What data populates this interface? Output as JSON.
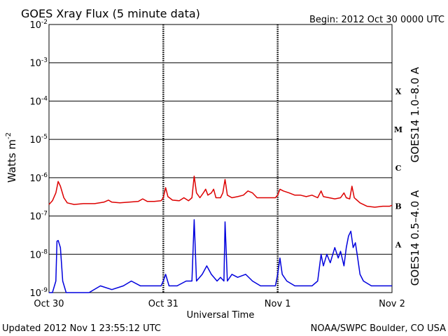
{
  "header": {
    "title": "GOES Xray Flux (5 minute data)",
    "begin": "Begin:  2012 Oct 30 0000 UTC"
  },
  "footer": {
    "updated": "Updated 2012 Nov  1 23:55:12 UTC",
    "source": "NOAA/SWPC Boulder, CO USA"
  },
  "chart_data": {
    "type": "line",
    "title": "GOES Xray Flux (5 minute data)",
    "xlabel": "Universal Time",
    "ylabel_main": "Watts m",
    "ylabel_sup": "-2",
    "yscale": "log",
    "ylim": [
      1e-09,
      0.01
    ],
    "ytick_base": "10",
    "yticks": [
      {
        "value": 0.01,
        "exp": "-2"
      },
      {
        "value": 0.001,
        "exp": "-3"
      },
      {
        "value": 0.0001,
        "exp": "-4"
      },
      {
        "value": 1e-05,
        "exp": "-5"
      },
      {
        "value": 1e-06,
        "exp": "-6"
      },
      {
        "value": 1e-07,
        "exp": "-7"
      },
      {
        "value": 1e-08,
        "exp": "-8"
      },
      {
        "value": 1e-09,
        "exp": "-9"
      }
    ],
    "xrange_days": [
      0,
      3
    ],
    "xticks": [
      {
        "day": 0,
        "label": "Oct 30"
      },
      {
        "day": 1,
        "label": "Oct 31"
      },
      {
        "day": 2,
        "label": "Nov 1"
      },
      {
        "day": 3,
        "label": "Nov 2"
      }
    ],
    "grid": true,
    "flare_classes": [
      {
        "label": "X",
        "value": 0.00018
      },
      {
        "label": "M",
        "value": 1.8e-05
      },
      {
        "label": "C",
        "value": 1.8e-06
      },
      {
        "label": "B",
        "value": 1.8e-07
      },
      {
        "label": "A",
        "value": 1.8e-08
      }
    ],
    "series": [
      {
        "name": "GOES14 1.0–8.0 A",
        "color": "#dd0000",
        "points": [
          [
            0.0,
            2e-07
          ],
          [
            0.03,
            2.5e-07
          ],
          [
            0.06,
            4e-07
          ],
          [
            0.08,
            8e-07
          ],
          [
            0.1,
            6e-07
          ],
          [
            0.13,
            3e-07
          ],
          [
            0.16,
            2.2e-07
          ],
          [
            0.22,
            2e-07
          ],
          [
            0.3,
            2.1e-07
          ],
          [
            0.4,
            2.1e-07
          ],
          [
            0.48,
            2.3e-07
          ],
          [
            0.52,
            2.6e-07
          ],
          [
            0.55,
            2.3e-07
          ],
          [
            0.62,
            2.2e-07
          ],
          [
            0.7,
            2.3e-07
          ],
          [
            0.78,
            2.4e-07
          ],
          [
            0.82,
            2.8e-07
          ],
          [
            0.86,
            2.4e-07
          ],
          [
            0.92,
            2.4e-07
          ],
          [
            0.98,
            2.5e-07
          ],
          [
            1.0,
            3e-07
          ],
          [
            1.02,
            5.5e-07
          ],
          [
            1.04,
            3.2e-07
          ],
          [
            1.08,
            2.6e-07
          ],
          [
            1.14,
            2.5e-07
          ],
          [
            1.18,
            3e-07
          ],
          [
            1.22,
            2.5e-07
          ],
          [
            1.25,
            3e-07
          ],
          [
            1.27,
            1.1e-06
          ],
          [
            1.29,
            4e-07
          ],
          [
            1.32,
            3e-07
          ],
          [
            1.35,
            4e-07
          ],
          [
            1.37,
            5e-07
          ],
          [
            1.39,
            3.5e-07
          ],
          [
            1.42,
            4e-07
          ],
          [
            1.44,
            5e-07
          ],
          [
            1.46,
            3e-07
          ],
          [
            1.5,
            3e-07
          ],
          [
            1.52,
            4e-07
          ],
          [
            1.54,
            9e-07
          ],
          [
            1.56,
            3.5e-07
          ],
          [
            1.6,
            3e-07
          ],
          [
            1.65,
            3.2e-07
          ],
          [
            1.7,
            3.5e-07
          ],
          [
            1.74,
            4.5e-07
          ],
          [
            1.78,
            4e-07
          ],
          [
            1.82,
            3e-07
          ],
          [
            1.88,
            3e-07
          ],
          [
            1.94,
            3e-07
          ],
          [
            1.98,
            3e-07
          ],
          [
            2.0,
            3.5e-07
          ],
          [
            2.02,
            5e-07
          ],
          [
            2.05,
            4.5e-07
          ],
          [
            2.1,
            4e-07
          ],
          [
            2.15,
            3.5e-07
          ],
          [
            2.2,
            3.5e-07
          ],
          [
            2.25,
            3.2e-07
          ],
          [
            2.3,
            3.5e-07
          ],
          [
            2.35,
            3e-07
          ],
          [
            2.38,
            4.5e-07
          ],
          [
            2.4,
            3.2e-07
          ],
          [
            2.45,
            3e-07
          ],
          [
            2.5,
            2.8e-07
          ],
          [
            2.55,
            3e-07
          ],
          [
            2.58,
            4e-07
          ],
          [
            2.6,
            3e-07
          ],
          [
            2.63,
            2.8e-07
          ],
          [
            2.65,
            6e-07
          ],
          [
            2.67,
            3e-07
          ],
          [
            2.72,
            2.2e-07
          ],
          [
            2.78,
            1.8e-07
          ],
          [
            2.85,
            1.7e-07
          ],
          [
            2.92,
            1.8e-07
          ],
          [
            2.98,
            1.8e-07
          ],
          [
            3.0,
            1.9e-07
          ]
        ]
      },
      {
        "name": "GOES14 0.5–4.0 A",
        "color": "#0000dd",
        "points": [
          [
            0.0,
            1e-09
          ],
          [
            0.03,
            1e-09
          ],
          [
            0.06,
            2e-09
          ],
          [
            0.07,
            2.2e-08
          ],
          [
            0.08,
            2.3e-08
          ],
          [
            0.1,
            1.5e-08
          ],
          [
            0.12,
            2e-09
          ],
          [
            0.15,
            1e-09
          ],
          [
            0.25,
            1e-09
          ],
          [
            0.35,
            1e-09
          ],
          [
            0.45,
            1.5e-09
          ],
          [
            0.55,
            1.2e-09
          ],
          [
            0.65,
            1.5e-09
          ],
          [
            0.72,
            2e-09
          ],
          [
            0.8,
            1.5e-09
          ],
          [
            0.9,
            1.5e-09
          ],
          [
            0.98,
            1.5e-09
          ],
          [
            1.0,
            2e-09
          ],
          [
            1.02,
            3e-09
          ],
          [
            1.05,
            1.5e-09
          ],
          [
            1.12,
            1.5e-09
          ],
          [
            1.2,
            2e-09
          ],
          [
            1.25,
            2e-09
          ],
          [
            1.27,
            8e-08
          ],
          [
            1.29,
            2e-09
          ],
          [
            1.34,
            3e-09
          ],
          [
            1.38,
            5e-09
          ],
          [
            1.42,
            3e-09
          ],
          [
            1.47,
            2e-09
          ],
          [
            1.5,
            2.5e-09
          ],
          [
            1.53,
            2e-09
          ],
          [
            1.54,
            7e-08
          ],
          [
            1.56,
            2e-09
          ],
          [
            1.6,
            3e-09
          ],
          [
            1.65,
            2.5e-09
          ],
          [
            1.72,
            3e-09
          ],
          [
            1.78,
            2e-09
          ],
          [
            1.85,
            1.5e-09
          ],
          [
            1.92,
            1.5e-09
          ],
          [
            1.98,
            1.5e-09
          ],
          [
            2.0,
            3e-09
          ],
          [
            2.02,
            8e-09
          ],
          [
            2.04,
            3e-09
          ],
          [
            2.08,
            2e-09
          ],
          [
            2.15,
            1.5e-09
          ],
          [
            2.25,
            1.5e-09
          ],
          [
            2.3,
            1.5e-09
          ],
          [
            2.35,
            2e-09
          ],
          [
            2.38,
            1e-08
          ],
          [
            2.4,
            5e-09
          ],
          [
            2.43,
            1e-08
          ],
          [
            2.46,
            6e-09
          ],
          [
            2.5,
            1.5e-08
          ],
          [
            2.53,
            8e-09
          ],
          [
            2.55,
            1.2e-08
          ],
          [
            2.58,
            5e-09
          ],
          [
            2.6,
            1.5e-08
          ],
          [
            2.62,
            3e-08
          ],
          [
            2.64,
            4e-08
          ],
          [
            2.66,
            1.5e-08
          ],
          [
            2.68,
            2e-08
          ],
          [
            2.7,
            8e-09
          ],
          [
            2.72,
            3e-09
          ],
          [
            2.75,
            2e-09
          ],
          [
            2.82,
            1.5e-09
          ],
          [
            2.9,
            1.5e-09
          ],
          [
            2.98,
            1.5e-09
          ],
          [
            3.0,
            1.5e-09
          ]
        ]
      }
    ]
  }
}
